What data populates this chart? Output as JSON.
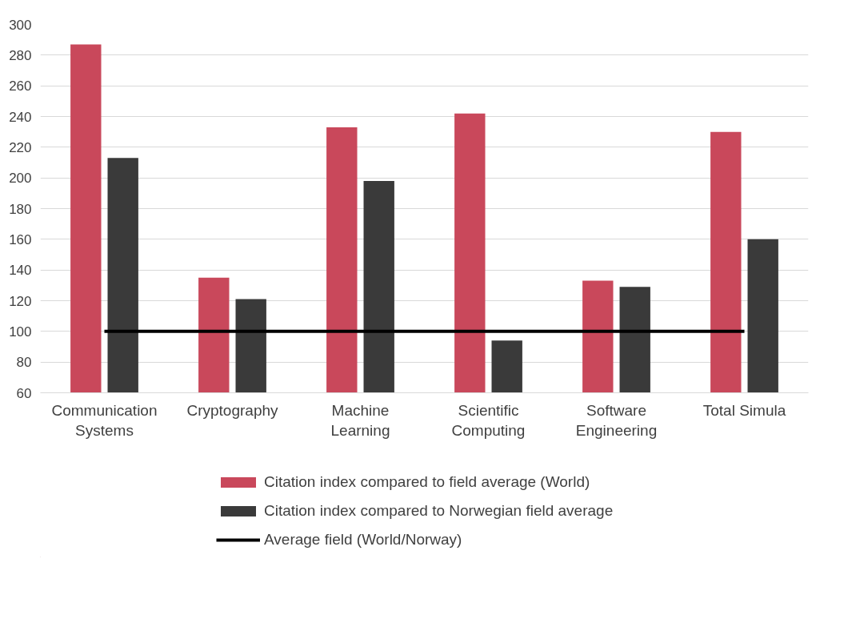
{
  "chart_data": {
    "type": "bar",
    "categories": [
      "Communication Systems",
      "Cryptography",
      "Machine Learning",
      "Scientific Computing",
      "Software Engineering",
      "Total Simula"
    ],
    "series": [
      {
        "name": "Citation index compared to field average (World)",
        "color": "#c9485b",
        "values": [
          287,
          135,
          233,
          242,
          133,
          230
        ]
      },
      {
        "name": "Citation index compared to Norwegian field average",
        "color": "#3a3a3a",
        "values": [
          213,
          121,
          198,
          94,
          129,
          160
        ]
      },
      {
        "name": "Average field (World/Norway)",
        "type": "line",
        "color": "#000000",
        "values": [
          100,
          100,
          100,
          100,
          100,
          100
        ]
      }
    ],
    "ylim": [
      60,
      300
    ],
    "yticks": [
      60,
      80,
      100,
      120,
      140,
      160,
      180,
      200,
      220,
      240,
      260,
      280,
      300
    ],
    "grid": "y",
    "legend": "bottom"
  }
}
